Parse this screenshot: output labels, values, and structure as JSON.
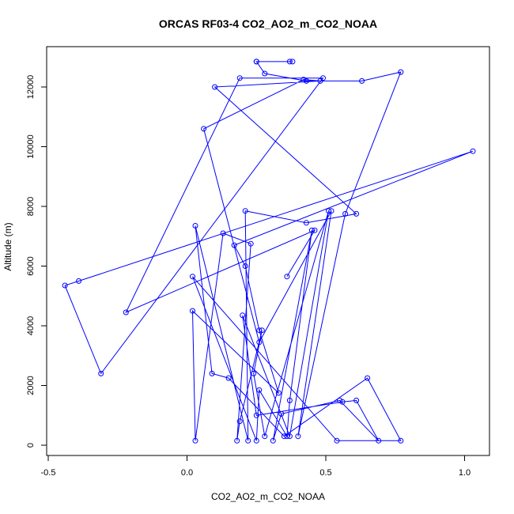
{
  "chart_data": {
    "type": "line",
    "title": "ORCAS RF03-4 CO2_AO2_m_CO2_NOAA",
    "xlabel": "CO2_AO2_m_CO2_NOAA",
    "ylabel": "Altitude (m)",
    "xlim": [
      -0.5,
      1.0
    ],
    "ylim": [
      0,
      12000
    ],
    "xticks": [
      -0.5,
      0.0,
      0.5,
      1.0
    ],
    "xtick_labels": [
      "-0.5",
      "0.0",
      "0.5",
      "1.0"
    ],
    "yticks": [
      0,
      2000,
      4000,
      6000,
      8000,
      10000,
      12000
    ],
    "ytick_labels": [
      "0",
      "2000",
      "4000",
      "6000",
      "8000",
      "10000",
      "12000"
    ],
    "grid": false,
    "marker": "open-circle",
    "series": [
      {
        "color": "#0000ff",
        "x": [
          0.25,
          0.38,
          0.37,
          0.25,
          0.28,
          0.43,
          0.63,
          0.77,
          0.57,
          0.4,
          0.52,
          0.26,
          0.06,
          0.42,
          0.48,
          0.1,
          0.61,
          0.43,
          0.21,
          0.22,
          0.03,
          0.09,
          0.15,
          0.35,
          0.65,
          0.77,
          0.54,
          0.02,
          0.25,
          0.26,
          0.36,
          0.37,
          0.45,
          0.31,
          0.34,
          0.55,
          0.69,
          0.61,
          0.56,
          0.25,
          0.2,
          0.37,
          0.51,
          0.28,
          0.24,
          0.27,
          0.19,
          0.18,
          0.23,
          0.13,
          0.03,
          0.02,
          0.33,
          0.26,
          0.21,
          0.17,
          1.03,
          -0.39,
          -0.44,
          -0.31,
          0.49,
          0.19,
          -0.22,
          0.46,
          0.36
        ],
        "y": [
          12850,
          12850,
          12850,
          12850,
          12450,
          12200,
          12200,
          12500,
          7750,
          300,
          7850,
          3450,
          10600,
          12250,
          12200,
          12000,
          7750,
          7450,
          7850,
          150,
          7350,
          2400,
          2250,
          300,
          2250,
          150,
          150,
          5650,
          150,
          1850,
          300,
          1500,
          7200,
          150,
          1050,
          1500,
          150,
          1500,
          1450,
          1000,
          4350,
          300,
          7850,
          300,
          2400,
          3850,
          800,
          150,
          6750,
          7100,
          150,
          4500,
          1750,
          3850,
          6000,
          6700,
          9850,
          5500,
          5350,
          2400,
          12300,
          12300,
          4450,
          7200,
          5650
        ]
      }
    ]
  }
}
